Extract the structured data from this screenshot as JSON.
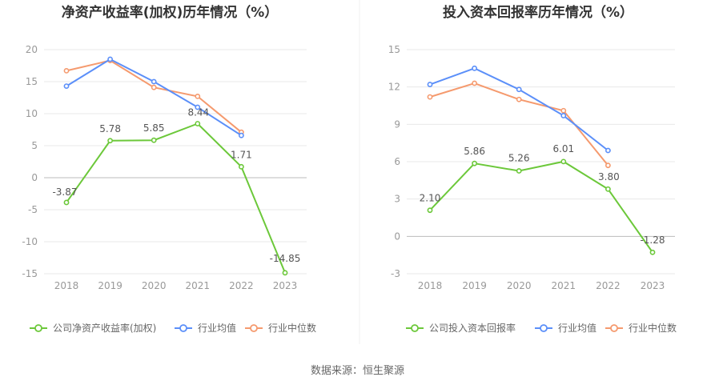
{
  "colors": {
    "company": "#6cc83a",
    "avg": "#5b8ff9",
    "median": "#f59a6e",
    "grid": "#e8e8e8",
    "axis": "#bbbbbb"
  },
  "source_text": "数据来源：恒生聚源",
  "chart_data": [
    {
      "type": "line",
      "title": "净资产收益率(加权)历年情况（%）",
      "categories": [
        "2018",
        "2019",
        "2020",
        "2021",
        "2022",
        "2023"
      ],
      "ylim": [
        -15,
        20
      ],
      "yticks": [
        20,
        15,
        10,
        5,
        0,
        -5,
        -10,
        -15
      ],
      "ytick_labels": [
        "20",
        "15",
        "10",
        "5",
        "0",
        "-5",
        "-10",
        "-15"
      ],
      "grid": true,
      "legend_position": "bottom",
      "series": [
        {
          "name": "公司净资产收益率(加权)",
          "role": "company",
          "values": [
            -3.87,
            5.78,
            5.85,
            8.44,
            1.71,
            -14.85
          ],
          "labels": [
            "-3.87",
            "5.78",
            "5.85",
            "8.44",
            "1.71",
            "-14.85"
          ]
        },
        {
          "name": "行业均值",
          "role": "avg",
          "values": [
            14.3,
            18.5,
            15.0,
            11.0,
            6.6,
            null
          ]
        },
        {
          "name": "行业中位数",
          "role": "median",
          "values": [
            16.7,
            18.3,
            14.1,
            12.7,
            7.1,
            null
          ]
        }
      ]
    },
    {
      "type": "line",
      "title": "投入资本回报率历年情况（%）",
      "categories": [
        "2018",
        "2019",
        "2020",
        "2021",
        "2022",
        "2023"
      ],
      "ylim": [
        -3,
        15
      ],
      "yticks": [
        15,
        12,
        9,
        6,
        3,
        0,
        -3
      ],
      "ytick_labels": [
        "15",
        "12",
        "9",
        "6",
        "3",
        "0",
        "-3"
      ],
      "grid": true,
      "legend_position": "bottom",
      "series": [
        {
          "name": "公司投入资本回报率",
          "role": "company",
          "values": [
            2.1,
            5.86,
            5.26,
            6.01,
            3.8,
            -1.28
          ],
          "labels": [
            "2.10",
            "5.86",
            "5.26",
            "6.01",
            "3.80",
            "-1.28"
          ]
        },
        {
          "name": "行业均值",
          "role": "avg",
          "values": [
            12.2,
            13.5,
            11.8,
            9.7,
            6.9,
            null
          ]
        },
        {
          "name": "行业中位数",
          "role": "median",
          "values": [
            11.2,
            12.3,
            11.0,
            10.1,
            5.7,
            null
          ]
        }
      ]
    }
  ]
}
